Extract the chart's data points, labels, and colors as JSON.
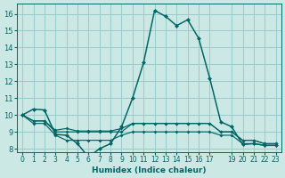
{
  "title": "",
  "xlabel": "Humidex (Indice chaleur)",
  "background_color": "#cce8e4",
  "grid_color": "#99cccc",
  "line_color": "#006666",
  "xlim": [
    -0.5,
    23.5
  ],
  "ylim": [
    7.8,
    16.6
  ],
  "yticks": [
    8,
    9,
    10,
    11,
    12,
    13,
    14,
    15,
    16
  ],
  "xtick_vals": [
    0,
    1,
    2,
    3,
    4,
    5,
    6,
    7,
    8,
    9,
    10,
    11,
    12,
    13,
    14,
    15,
    16,
    17,
    19,
    20,
    21,
    22,
    23
  ],
  "xtick_labels": [
    "0",
    "1",
    "2",
    "3",
    "4",
    "5",
    "6",
    "7",
    "8",
    "9",
    "10",
    "11",
    "12",
    "13",
    "14",
    "15",
    "16",
    "17",
    "19",
    "20",
    "21",
    "22",
    "23"
  ],
  "series": [
    [
      10.0,
      10.35,
      10.3,
      8.85,
      8.8,
      8.3,
      7.5,
      8.0,
      8.3,
      9.3,
      11.0,
      13.1,
      16.2,
      15.85,
      15.3,
      15.65,
      14.55,
      12.2,
      9.6,
      9.3,
      8.25,
      8.3,
      8.2,
      8.2
    ],
    [
      10.0,
      9.65,
      9.65,
      9.0,
      9.0,
      9.0,
      9.0,
      9.0,
      9.0,
      9.0,
      9.5,
      9.5,
      9.5,
      9.5,
      9.5,
      9.5,
      9.5,
      9.5,
      9.0,
      9.0,
      8.5,
      8.5,
      8.3,
      8.3
    ],
    [
      10.0,
      9.65,
      9.65,
      9.1,
      9.2,
      9.05,
      9.05,
      9.05,
      9.05,
      9.2,
      9.5,
      9.5,
      9.5,
      9.5,
      9.5,
      9.5,
      9.5,
      9.5,
      9.0,
      9.0,
      8.5,
      8.5,
      8.3,
      8.3
    ],
    [
      10.0,
      9.5,
      9.5,
      8.8,
      8.5,
      8.5,
      8.5,
      8.5,
      8.5,
      8.8,
      9.0,
      9.0,
      9.0,
      9.0,
      9.0,
      9.0,
      9.0,
      9.0,
      8.8,
      8.8,
      8.3,
      8.3,
      8.2,
      8.2
    ]
  ],
  "marker": "D",
  "markersize_main": 2.5,
  "markersize_sub": 2.0,
  "lw_main": 1.1,
  "lw_sub": 0.85,
  "xlabel_fontsize": 6.5,
  "tick_fontsize": 5.5,
  "ytick_fontsize": 6.0
}
